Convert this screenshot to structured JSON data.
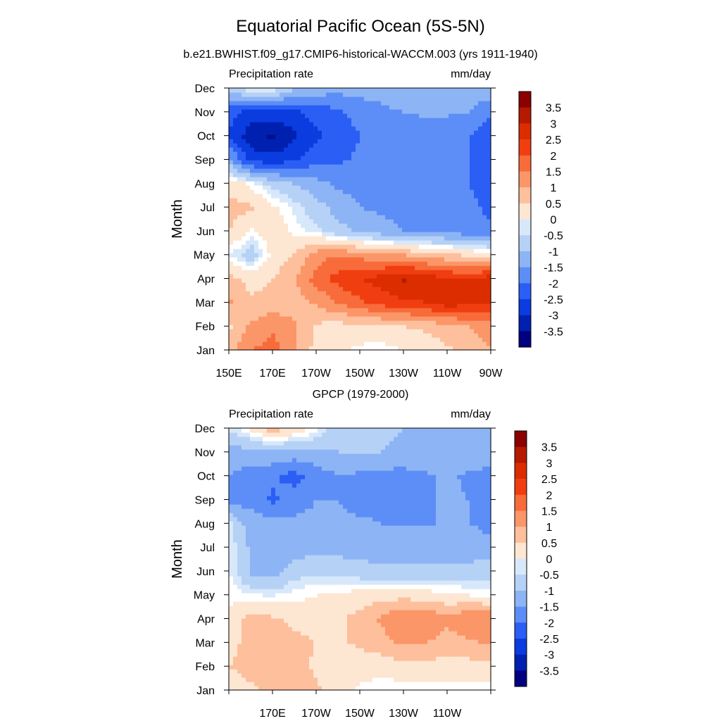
{
  "title": "Equatorial Pacific Ocean (5S-5N)",
  "colorbar_levels": [
    "3.5",
    "3",
    "2.5",
    "2",
    "1.5",
    "1",
    "0.5",
    "0",
    "-0.5",
    "-1",
    "-1.5",
    "-2",
    "-2.5",
    "-3",
    "-3.5"
  ],
  "colorbar_colors": [
    "#8b0000",
    "#b51a00",
    "#dc2d00",
    "#f03e10",
    "#f86b3a",
    "#fb9668",
    "#fdbf9c",
    "#fde6d2",
    "#ffffff",
    "#d7e8fa",
    "#b6d1f6",
    "#8db4f4",
    "#5d8ef7",
    "#2a5ef5",
    "#0a3ce0",
    "#0020b0",
    "#00108c",
    "#000080"
  ],
  "months": [
    "Jan",
    "Feb",
    "Mar",
    "Apr",
    "May",
    "Jun",
    "Jul",
    "Aug",
    "Sep",
    "Oct",
    "Nov",
    "Dec"
  ],
  "lon_ticks": [
    "150E",
    "170E",
    "170W",
    "150W",
    "130W",
    "110W",
    "90W"
  ],
  "chart_data": [
    {
      "type": "heatmap",
      "subtitle": "b.e21.BWHIST.f09_g17.CMIP6-historical-WACCM.003 (yrs 1911-1940)",
      "left_label": "Precipitation rate",
      "right_label": "mm/day",
      "ylabel": "Month",
      "xlabel": "",
      "x_tick_labels": [
        "150E",
        "170E",
        "170W",
        "150W",
        "130W",
        "110W",
        "90W"
      ],
      "y_tick_labels": [
        "Jan",
        "Feb",
        "Mar",
        "Apr",
        "May",
        "Jun",
        "Jul",
        "Aug",
        "Sep",
        "Oct",
        "Nov",
        "Dec"
      ],
      "x_longitude": [
        150,
        160,
        170,
        180,
        190,
        200,
        210,
        220,
        230,
        240,
        250,
        260,
        270
      ],
      "units": "mm/day",
      "values": [
        [
          1.3,
          2.0,
          2.2,
          1.6,
          0.8,
          0.6,
          0.4,
          0.3,
          0.5,
          0.7,
          0.9,
          1.2,
          1.5
        ],
        [
          0.9,
          1.6,
          1.9,
          1.6,
          0.9,
          0.8,
          0.8,
          0.9,
          1.0,
          1.1,
          1.3,
          1.5,
          1.7
        ],
        [
          1.6,
          1.1,
          1.2,
          1.2,
          1.6,
          2.0,
          2.4,
          2.7,
          2.9,
          3.0,
          3.3,
          3.2,
          3.0
        ],
        [
          1.2,
          0.8,
          1.0,
          1.5,
          2.2,
          2.7,
          3.0,
          3.2,
          3.6,
          3.3,
          3.1,
          3.0,
          3.3
        ],
        [
          0.3,
          -0.3,
          0.6,
          1.0,
          1.8,
          2.0,
          1.8,
          1.6,
          1.5,
          1.3,
          1.1,
          0.9,
          0.7
        ],
        [
          1.0,
          0.4,
          0.8,
          0.4,
          0.1,
          -0.3,
          -0.6,
          -0.8,
          -1.0,
          -1.1,
          -1.2,
          -1.3,
          -1.4
        ],
        [
          1.2,
          1.1,
          0.6,
          0.2,
          -0.3,
          -0.7,
          -1.0,
          -1.1,
          -1.2,
          -1.2,
          -1.3,
          -1.4,
          -1.6
        ],
        [
          0.8,
          0.4,
          -0.2,
          -0.5,
          -0.8,
          -1.1,
          -1.2,
          -1.3,
          -1.3,
          -1.4,
          -1.4,
          -1.5,
          -1.7
        ],
        [
          -0.8,
          -2.2,
          -2.3,
          -2.1,
          -1.7,
          -1.6,
          -1.4,
          -1.3,
          -1.3,
          -1.4,
          -1.4,
          -1.5,
          -1.6
        ],
        [
          -2.0,
          -2.8,
          -3.1,
          -2.6,
          -2.1,
          -1.8,
          -1.5,
          -1.4,
          -1.4,
          -1.4,
          -1.5,
          -1.5,
          -1.9
        ],
        [
          -1.8,
          -2.2,
          -2.2,
          -2.1,
          -1.8,
          -1.6,
          -1.3,
          -1.1,
          -1.0,
          -0.9,
          -0.9,
          -1.0,
          -1.4
        ],
        [
          -0.4,
          0.4,
          0.3,
          -0.4,
          -0.7,
          -0.8,
          -0.8,
          -0.8,
          -0.7,
          -0.7,
          -0.7,
          -0.7,
          -0.7
        ]
      ]
    },
    {
      "type": "heatmap",
      "subtitle": "GPCP (1979-2000)",
      "left_label": "Precipitation rate",
      "right_label": "mm/day",
      "ylabel": "Month",
      "xlabel": "",
      "x_tick_labels": [
        "170E",
        "170W",
        "150W",
        "130W",
        "110W"
      ],
      "y_tick_labels": [
        "Jan",
        "Feb",
        "Mar",
        "Apr",
        "May",
        "Jun",
        "Jul",
        "Aug",
        "Sep",
        "Oct",
        "Nov",
        "Dec"
      ],
      "x_longitude": [
        150,
        160,
        170,
        180,
        190,
        200,
        210,
        220,
        230,
        240,
        250,
        260,
        270
      ],
      "units": "mm/day",
      "values": [
        [
          0.6,
          0.9,
          1.2,
          1.3,
          1.1,
          0.7,
          0.4,
          0.3,
          0.3,
          0.3,
          0.3,
          0.3,
          0.3
        ],
        [
          1.0,
          1.2,
          1.3,
          1.2,
          0.9,
          0.8,
          0.7,
          0.7,
          0.8,
          0.8,
          0.8,
          0.8,
          0.8
        ],
        [
          0.8,
          1.2,
          1.5,
          1.2,
          1.0,
          0.9,
          1.1,
          1.3,
          1.6,
          1.5,
          1.3,
          1.4,
          1.6
        ],
        [
          0.6,
          1.2,
          1.1,
          0.8,
          0.7,
          0.9,
          1.2,
          1.6,
          2.0,
          2.0,
          1.6,
          2.0,
          2.0
        ],
        [
          0.4,
          0.3,
          0.2,
          0.4,
          0.5,
          0.6,
          0.7,
          0.8,
          0.8,
          0.7,
          0.6,
          0.5,
          0.4
        ],
        [
          0.3,
          -0.6,
          -0.8,
          -0.2,
          -0.1,
          -0.2,
          -0.3,
          -0.4,
          -0.4,
          -0.3,
          -0.3,
          -0.3,
          -0.2
        ],
        [
          0.3,
          -0.6,
          -0.8,
          -0.8,
          -0.7,
          -0.7,
          -0.7,
          -0.8,
          -0.8,
          -0.8,
          -0.8,
          -0.8,
          -0.9
        ],
        [
          0.1,
          -0.8,
          -0.8,
          -0.9,
          -0.9,
          -0.9,
          -0.9,
          -1.0,
          -1.0,
          -1.0,
          -1.0,
          -1.0,
          -1.1
        ],
        [
          -1.4,
          -1.1,
          -1.6,
          -1.2,
          -1.0,
          -1.0,
          -1.2,
          -1.2,
          -1.3,
          -1.1,
          -0.9,
          -1.0,
          -1.2
        ],
        [
          -1.0,
          -1.2,
          -1.4,
          -1.7,
          -1.3,
          -1.0,
          -1.1,
          -1.2,
          -1.2,
          -1.1,
          -0.9,
          -1.1,
          -1.2
        ],
        [
          -0.8,
          -0.7,
          -0.6,
          -0.7,
          -0.6,
          -0.5,
          -0.5,
          -0.5,
          -0.6,
          -0.6,
          -0.6,
          -0.6,
          -0.7
        ],
        [
          0.1,
          0.6,
          1.3,
          0.9,
          0.4,
          -0.3,
          -0.4,
          -0.4,
          -0.5,
          -0.5,
          -0.5,
          -0.5,
          -0.5
        ]
      ]
    }
  ]
}
